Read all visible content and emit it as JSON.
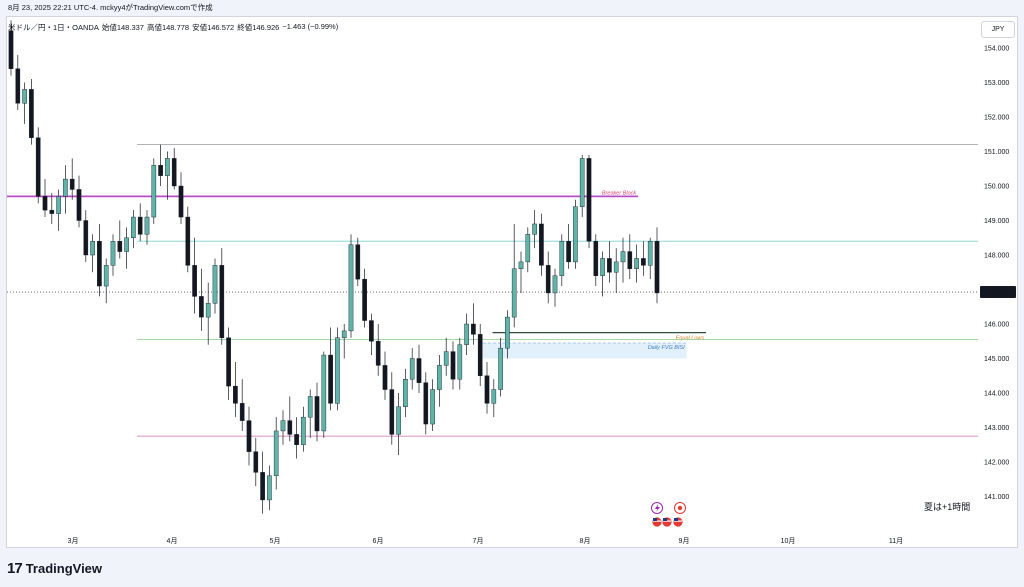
{
  "header": {
    "title": "8月 23, 2025 22:21 UTC-4.  mckyy4がTradingView.comで作成"
  },
  "symbol_line": {
    "symbol": "米ドル／円・1日・OANDA",
    "open": "始値148.337",
    "high": "高値148.778",
    "low": "安値146.572",
    "close": "終値146.926",
    "change": "−1.463 (−0.99%)"
  },
  "currency": "JPY",
  "dst_note": "夏は+1時間",
  "footer": {
    "brand": "TradingView"
  },
  "colors": {
    "up": "#5fb3a8",
    "down": "#131722",
    "breaker": "#b84cc9",
    "cyan_line": "#7ecfcf",
    "green_line": "#8cc98c",
    "pink_line": "#cc6ab8",
    "gray_line": "#9598a1",
    "equal_lows": "#2f4f3f",
    "fvg": "#d6e9fb"
  },
  "chart_data": {
    "type": "candlestick",
    "title": "",
    "xlabel": "",
    "ylabel": "",
    "ylim": [
      140.3,
      155.0
    ],
    "y_ticks": [
      141.0,
      142.0,
      143.0,
      144.0,
      145.0,
      146.0,
      147.0,
      148.0,
      149.0,
      150.0,
      151.0,
      152.0,
      153.0,
      154.0
    ],
    "y_tick_labels": [
      "141.000",
      "142.000",
      "143.000",
      "144.000",
      "145.000",
      "146.000",
      "147.000",
      "148.000",
      "149.000",
      "150.000",
      "151.000",
      "152.000",
      "153.000",
      "154.000"
    ],
    "x_labels": [
      "3月",
      "4月",
      "5月",
      "6月",
      "7月",
      "8月",
      "9月",
      "10月",
      "11月"
    ],
    "last_price": 146.926,
    "last_price_label": "146.926",
    "levels": [
      {
        "name": "upper-gray",
        "price": 151.2,
        "from_bar": 134,
        "to_bar": 1000
      },
      {
        "name": "breaker-block",
        "price": 149.7,
        "from_bar": 0,
        "to_bar": 650,
        "label": "Breaker Block"
      },
      {
        "name": "cyan",
        "price": 148.4,
        "from_bar": 134,
        "to_bar": 1000
      },
      {
        "name": "equal-lows",
        "price": 145.75,
        "from_bar": 500,
        "to_bar": 720,
        "label": "Equal Lows"
      },
      {
        "name": "green",
        "price": 145.55,
        "from_bar": 134,
        "to_bar": 1000
      },
      {
        "name": "fvg",
        "price_top": 145.45,
        "price_bottom": 145.0,
        "from_bar": 490,
        "to_bar": 700,
        "label": "Daily FVG BISI"
      },
      {
        "name": "pink",
        "price": 142.75,
        "from_bar": 134,
        "to_bar": 1000
      }
    ],
    "candles": [
      [
        154.5,
        154.8,
        153.2,
        153.4
      ],
      [
        153.4,
        153.8,
        152.2,
        152.4
      ],
      [
        152.4,
        153.0,
        151.8,
        152.8
      ],
      [
        152.8,
        153.1,
        151.2,
        151.4
      ],
      [
        151.4,
        151.7,
        149.5,
        149.7
      ],
      [
        149.7,
        150.2,
        149.1,
        149.3
      ],
      [
        149.3,
        149.8,
        148.9,
        149.2
      ],
      [
        149.2,
        149.9,
        148.7,
        149.7
      ],
      [
        149.7,
        150.6,
        149.2,
        150.2
      ],
      [
        150.2,
        150.8,
        149.6,
        149.9
      ],
      [
        149.9,
        150.3,
        148.8,
        149.0
      ],
      [
        149.0,
        149.3,
        147.8,
        148.0
      ],
      [
        148.0,
        148.6,
        147.5,
        148.4
      ],
      [
        148.4,
        148.9,
        146.8,
        147.1
      ],
      [
        147.1,
        147.9,
        146.6,
        147.7
      ],
      [
        147.7,
        148.6,
        147.4,
        148.4
      ],
      [
        148.4,
        149.0,
        147.9,
        148.1
      ],
      [
        148.1,
        148.8,
        147.6,
        148.5
      ],
      [
        148.5,
        149.3,
        148.2,
        149.1
      ],
      [
        149.1,
        149.5,
        148.4,
        148.6
      ],
      [
        148.6,
        149.3,
        148.3,
        149.1
      ],
      [
        149.1,
        150.8,
        148.9,
        150.6
      ],
      [
        150.6,
        151.2,
        150.0,
        150.3
      ],
      [
        150.3,
        151.0,
        149.6,
        150.8
      ],
      [
        150.8,
        151.1,
        149.9,
        150.0
      ],
      [
        150.0,
        150.4,
        148.9,
        149.1
      ],
      [
        149.1,
        149.4,
        147.5,
        147.7
      ],
      [
        147.7,
        148.5,
        146.3,
        146.8
      ],
      [
        146.8,
        147.6,
        145.8,
        146.2
      ],
      [
        146.2,
        147.2,
        145.4,
        146.6
      ],
      [
        146.6,
        147.9,
        146.3,
        147.7
      ],
      [
        147.7,
        148.2,
        145.4,
        145.6
      ],
      [
        145.6,
        145.9,
        143.8,
        144.2
      ],
      [
        144.2,
        144.9,
        143.3,
        143.7
      ],
      [
        143.7,
        144.4,
        142.9,
        143.2
      ],
      [
        143.2,
        143.6,
        141.9,
        142.3
      ],
      [
        142.3,
        142.7,
        141.3,
        141.7
      ],
      [
        141.7,
        142.3,
        140.5,
        140.9
      ],
      [
        140.9,
        141.9,
        140.6,
        141.6
      ],
      [
        141.6,
        143.3,
        141.2,
        142.9
      ],
      [
        142.9,
        143.5,
        142.5,
        143.2
      ],
      [
        143.2,
        143.9,
        142.6,
        142.8
      ],
      [
        142.8,
        143.3,
        142.1,
        142.5
      ],
      [
        142.5,
        143.6,
        142.3,
        143.3
      ],
      [
        143.3,
        144.1,
        142.7,
        143.9
      ],
      [
        143.9,
        144.3,
        142.6,
        142.9
      ],
      [
        142.9,
        145.2,
        142.7,
        145.1
      ],
      [
        145.1,
        145.9,
        143.5,
        143.7
      ],
      [
        143.7,
        145.9,
        143.5,
        145.6
      ],
      [
        145.6,
        146.0,
        145.0,
        145.8
      ],
      [
        145.8,
        148.6,
        145.6,
        148.3
      ],
      [
        148.3,
        148.5,
        147.1,
        147.3
      ],
      [
        147.3,
        147.6,
        145.9,
        146.1
      ],
      [
        146.1,
        146.3,
        145.1,
        145.5
      ],
      [
        145.5,
        146.0,
        144.5,
        144.8
      ],
      [
        144.8,
        145.2,
        143.8,
        144.1
      ],
      [
        144.1,
        144.6,
        142.5,
        142.8
      ],
      [
        142.8,
        144.0,
        142.2,
        143.6
      ],
      [
        143.6,
        144.7,
        143.3,
        144.4
      ],
      [
        144.4,
        145.3,
        144.1,
        145.0
      ],
      [
        145.0,
        145.4,
        144.0,
        144.3
      ],
      [
        144.3,
        144.6,
        142.8,
        143.1
      ],
      [
        143.1,
        144.4,
        142.9,
        144.1
      ],
      [
        144.1,
        145.1,
        143.6,
        144.8
      ],
      [
        144.8,
        145.6,
        144.5,
        145.2
      ],
      [
        145.2,
        145.5,
        144.1,
        144.4
      ],
      [
        144.4,
        145.6,
        144.1,
        145.4
      ],
      [
        145.4,
        146.3,
        145.1,
        146.0
      ],
      [
        146.0,
        146.6,
        145.4,
        145.7
      ],
      [
        145.7,
        146.0,
        144.2,
        144.5
      ],
      [
        144.5,
        144.9,
        143.4,
        143.7
      ],
      [
        143.7,
        144.4,
        143.3,
        144.1
      ],
      [
        144.1,
        145.6,
        143.9,
        145.3
      ],
      [
        145.3,
        146.4,
        145.0,
        146.2
      ],
      [
        146.2,
        148.9,
        145.9,
        147.6
      ],
      [
        147.6,
        148.1,
        146.9,
        147.8
      ],
      [
        147.8,
        148.8,
        147.5,
        148.6
      ],
      [
        148.6,
        149.3,
        148.2,
        148.9
      ],
      [
        148.9,
        149.2,
        147.4,
        147.7
      ],
      [
        147.7,
        148.1,
        146.6,
        146.9
      ],
      [
        146.9,
        147.6,
        146.5,
        147.4
      ],
      [
        147.4,
        148.6,
        147.1,
        148.4
      ],
      [
        148.4,
        148.9,
        147.6,
        147.8
      ],
      [
        147.8,
        149.6,
        147.6,
        149.4
      ],
      [
        149.4,
        150.9,
        149.1,
        150.8
      ],
      [
        150.8,
        150.9,
        148.2,
        148.4
      ],
      [
        148.4,
        148.6,
        147.1,
        147.4
      ],
      [
        147.4,
        148.1,
        146.8,
        147.9
      ],
      [
        147.9,
        148.4,
        147.2,
        147.5
      ],
      [
        147.5,
        148.2,
        146.9,
        147.8
      ],
      [
        147.8,
        148.5,
        147.2,
        148.1
      ],
      [
        148.1,
        148.6,
        147.3,
        147.6
      ],
      [
        147.6,
        148.3,
        147.2,
        147.9
      ],
      [
        147.9,
        148.4,
        147.4,
        147.7
      ],
      [
        147.7,
        148.5,
        147.3,
        148.4
      ],
      [
        148.4,
        148.8,
        146.6,
        146.9
      ]
    ]
  },
  "event_icons": [
    "lightning-icon",
    "record-icon"
  ]
}
